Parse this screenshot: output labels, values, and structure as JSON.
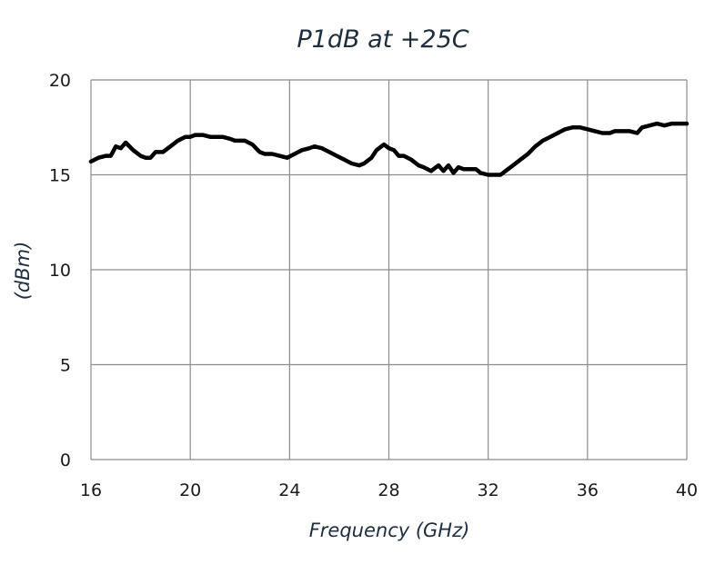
{
  "chart_data": {
    "type": "line",
    "title": "P1dB at +25C",
    "xlabel": "Frequency (GHz)",
    "ylabel": "(dBm)",
    "xlim": [
      16,
      40
    ],
    "ylim": [
      0,
      20
    ],
    "xticks": [
      16,
      20,
      24,
      28,
      32,
      36,
      40
    ],
    "yticks": [
      0,
      5,
      10,
      15,
      20
    ],
    "grid": true,
    "legend": "none",
    "line_color": "#000000",
    "series": [
      {
        "x": [
          16,
          16.3,
          16.6,
          16.8,
          17.0,
          17.2,
          17.4,
          17.7,
          18.0,
          18.2,
          18.4,
          18.6,
          18.9,
          19.2,
          19.5,
          19.8,
          20.0,
          20.2,
          20.5,
          20.8,
          21.0,
          21.3,
          21.6,
          21.8,
          22.0,
          22.2,
          22.5,
          22.8,
          23.0,
          23.3,
          23.6,
          23.9,
          24.2,
          24.5,
          24.8,
          25.0,
          25.3,
          25.6,
          25.9,
          26.2,
          26.5,
          26.8,
          27.0,
          27.3,
          27.5,
          27.8,
          28.0,
          28.2,
          28.4,
          28.6,
          28.9,
          29.2,
          29.4,
          29.7,
          29.8,
          30.0,
          30.2,
          30.4,
          30.6,
          30.8,
          31.0,
          31.2,
          31.5,
          31.7,
          32.0,
          32.3,
          32.5,
          32.8,
          33.0,
          33.3,
          33.6,
          33.9,
          34.2,
          34.5,
          34.8,
          35.1,
          35.4,
          35.7,
          36.0,
          36.3,
          36.6,
          36.9,
          37.1,
          37.4,
          37.7,
          38.0,
          38.2,
          38.5,
          38.8,
          39.1,
          39.4,
          39.7,
          40
        ],
        "y": [
          15.7,
          15.9,
          16.0,
          16.0,
          16.5,
          16.4,
          16.7,
          16.3,
          16.0,
          15.9,
          15.9,
          16.2,
          16.2,
          16.5,
          16.8,
          17.0,
          17.0,
          17.1,
          17.1,
          17.0,
          17.0,
          17.0,
          16.9,
          16.8,
          16.8,
          16.8,
          16.6,
          16.2,
          16.1,
          16.1,
          16.0,
          15.9,
          16.1,
          16.3,
          16.4,
          16.5,
          16.4,
          16.2,
          16.0,
          15.8,
          15.6,
          15.5,
          15.6,
          15.9,
          16.3,
          16.6,
          16.4,
          16.3,
          16.0,
          16.0,
          15.8,
          15.5,
          15.4,
          15.2,
          15.3,
          15.5,
          15.2,
          15.5,
          15.1,
          15.4,
          15.3,
          15.3,
          15.3,
          15.1,
          15.0,
          15.0,
          15.0,
          15.3,
          15.5,
          15.8,
          16.1,
          16.5,
          16.8,
          17.0,
          17.2,
          17.4,
          17.5,
          17.5,
          17.4,
          17.3,
          17.2,
          17.2,
          17.3,
          17.3,
          17.3,
          17.2,
          17.5,
          17.6,
          17.7,
          17.6,
          17.7,
          17.7,
          17.7
        ]
      }
    ]
  }
}
